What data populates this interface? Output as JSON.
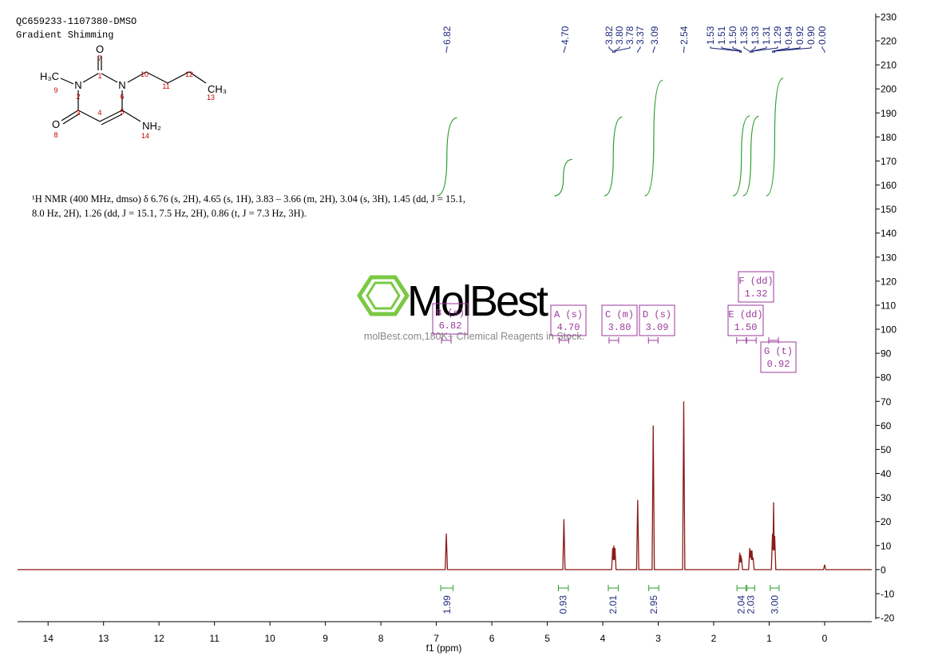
{
  "chart_data": {
    "type": "nmr",
    "title": "QC659233-1107380-DMSO",
    "subtitle": "Gradient Shimming",
    "x_label": "f1 (ppm)",
    "xlim": [
      14.55,
      -0.85
    ],
    "xticks": [
      14,
      13,
      12,
      11,
      10,
      9,
      8,
      7,
      6,
      5,
      4,
      3,
      2,
      1,
      0
    ],
    "ylim": [
      -20,
      230
    ],
    "yticks": [
      -20,
      -10,
      0,
      10,
      20,
      30,
      40,
      50,
      60,
      70,
      80,
      90,
      100,
      110,
      120,
      130,
      140,
      150,
      160,
      170,
      180,
      190,
      200,
      210,
      220,
      230
    ],
    "color": "#8b1a1a",
    "x": [
      14.55,
      6.84,
      6.82,
      6.8,
      4.72,
      4.7,
      4.68,
      3.84,
      3.82,
      3.81,
      3.8,
      3.79,
      3.78,
      3.76,
      3.39,
      3.37,
      3.35,
      3.11,
      3.09,
      3.07,
      2.56,
      2.54,
      2.52,
      1.55,
      1.53,
      1.52,
      1.51,
      1.505,
      1.5,
      1.48,
      1.37,
      1.35,
      1.34,
      1.33,
      1.32,
      1.31,
      1.3,
      1.29,
      1.27,
      0.96,
      0.94,
      0.93,
      0.92,
      0.91,
      0.9,
      0.88,
      0.02,
      0.0,
      -0.02,
      -0.85
    ],
    "values": [
      0,
      0,
      15,
      0,
      0,
      21,
      0,
      0,
      9,
      4,
      10,
      4,
      9,
      0,
      0,
      29,
      0,
      0,
      60,
      0,
      0,
      70,
      0,
      0,
      7,
      3,
      6,
      3,
      5,
      0,
      0,
      9,
      5,
      8,
      4,
      8,
      4,
      5,
      0,
      0,
      15,
      8,
      28,
      8,
      14,
      0,
      0,
      2,
      0,
      0
    ],
    "peak_labels": [
      {
        "value": 6.82,
        "label": "6.82"
      },
      {
        "value": 4.7,
        "label": "4.70"
      },
      {
        "value": 3.82,
        "label": "3.82"
      },
      {
        "value": 3.8,
        "label": "3.80"
      },
      {
        "value": 3.78,
        "label": "3.78"
      },
      {
        "value": 3.37,
        "label": "3.37"
      },
      {
        "value": 3.09,
        "label": "3.09"
      },
      {
        "value": 2.54,
        "label": "2.54"
      },
      {
        "value": 1.53,
        "label": "1.53"
      },
      {
        "value": 1.51,
        "label": "1.51"
      },
      {
        "value": 1.5,
        "label": "1.50"
      },
      {
        "value": 1.35,
        "label": "1.35"
      },
      {
        "value": 1.33,
        "label": "1.33"
      },
      {
        "value": 1.31,
        "label": "1.31"
      },
      {
        "value": 1.29,
        "label": "1.29"
      },
      {
        "value": 0.94,
        "label": "0.94"
      },
      {
        "value": 0.92,
        "label": "0.92"
      },
      {
        "value": 0.9,
        "label": "0.90"
      },
      {
        "value": 0.0,
        "label": "0.00"
      }
    ],
    "integrals": {
      "ranges": [
        [
          6.92,
          6.7
        ],
        [
          4.8,
          4.62
        ],
        [
          3.9,
          3.72
        ],
        [
          3.17,
          2.99
        ],
        [
          1.58,
          1.42
        ],
        [
          1.4,
          1.26
        ],
        [
          0.98,
          0.82
        ]
      ],
      "values": [
        1.99,
        0.93,
        2.01,
        2.95,
        2.04,
        2.03,
        3
      ],
      "value_labels": [
        "1.99",
        "0.93",
        "2.01",
        "2.95",
        "2.04",
        "2.03",
        "3.00"
      ]
    },
    "multiplets": [
      {
        "label": "B (s)",
        "shift": 6.82
      },
      {
        "label": "A (s)",
        "shift": {
          "value": 4.7,
          "label": "4.70"
        }
      },
      {
        "label": "C (m)",
        "shift": {
          "value": 3.8,
          "label": "3.80"
        }
      },
      {
        "label": "D (s)",
        "shift": 3.09
      },
      {
        "label": "E (dd)",
        "shift": {
          "value": 1.5,
          "label": "1.50"
        }
      },
      {
        "label": "F (dd)",
        "shift": 1.32
      },
      {
        "label": "G (t)",
        "shift": 0.92
      }
    ],
    "annotation": "¹H NMR (400 MHz, dmso) δ 6.76 (s, 2H), 4.65 (s, 1H), 3.83 – 3.66 (m, 2H), 3.04 (s, 3H), 1.45 (dd, J = 15.1, 8.0 Hz, 2H), 1.26 (dd, J = 15.1, 7.5 Hz, 2H), 0.86 (t, J = 7.3 Hz, 3H)."
  },
  "structure": {
    "atoms": [
      "O",
      "H₃C",
      "N",
      "N",
      "CH₃",
      "O",
      "NH₂"
    ],
    "atom_numbers": [
      "1",
      "2",
      "3",
      "4",
      "5",
      "6",
      "7",
      "8",
      "9",
      "10",
      "11",
      "12",
      "13",
      "14"
    ]
  },
  "watermark": {
    "logo": "MolBest",
    "text": "molBest.com,180K+ Chemical Reagents in Stock."
  }
}
